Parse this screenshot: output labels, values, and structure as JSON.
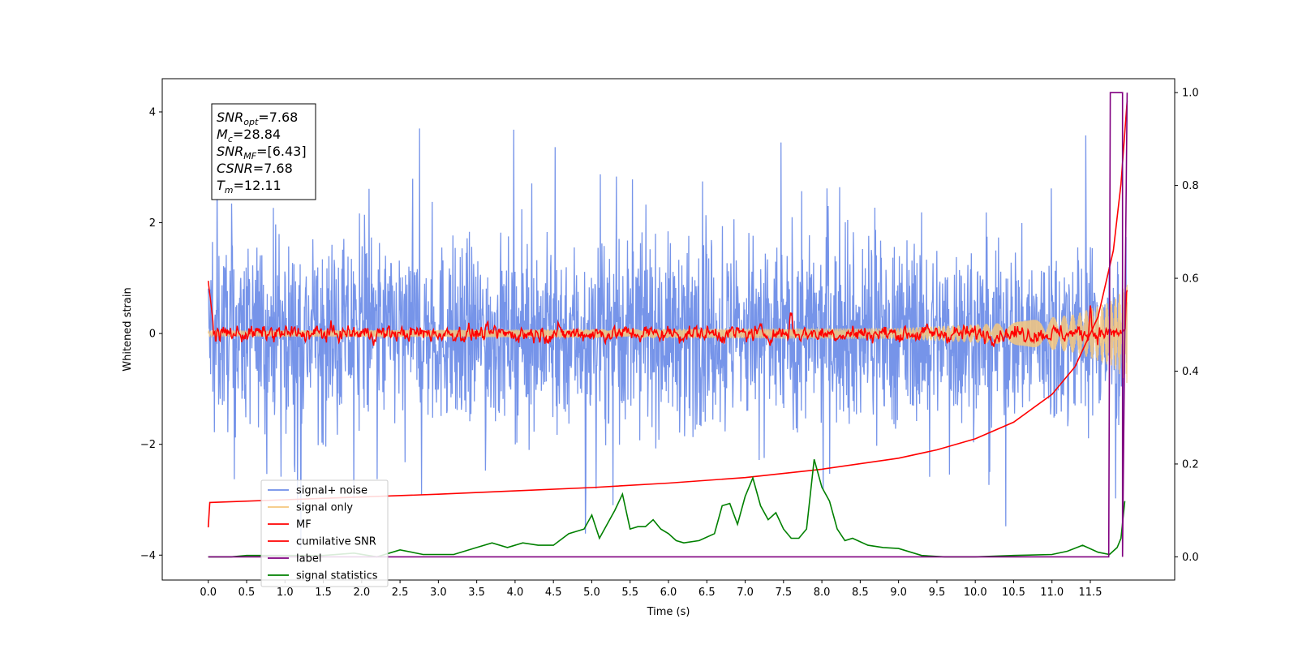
{
  "chart_data": {
    "type": "line",
    "title": "",
    "xlabel": "Time (s)",
    "ylabel": "Whitened strain",
    "xlim": [
      -0.6,
      12.6
    ],
    "ylim": [
      -4.45,
      4.6
    ],
    "y2lim": [
      -0.05,
      1.03
    ],
    "x_ticks": [
      0.0,
      0.5,
      1.0,
      1.5,
      2.0,
      2.5,
      3.0,
      3.5,
      4.0,
      4.5,
      5.0,
      5.5,
      6.0,
      6.5,
      7.0,
      7.5,
      8.0,
      8.5,
      9.0,
      9.5,
      10.0,
      10.5,
      11.0,
      11.5
    ],
    "x_tick_labels": [
      "0.0",
      "0.5",
      "1.0",
      "1.5",
      "2.0",
      "2.5",
      "3.0",
      "3.5",
      "4.0",
      "4.5",
      "5.0",
      "5.5",
      "6.0",
      "6.5",
      "7.0",
      "7.5",
      "8.0",
      "8.5",
      "9.0",
      "9.5",
      "10.0",
      "10.5",
      "11.0",
      "11.5"
    ],
    "y_ticks": [
      -4,
      -2,
      0,
      2,
      4
    ],
    "y_tick_labels": [
      "−4",
      "−2",
      "0",
      "2",
      "4"
    ],
    "y2_ticks": [
      0.0,
      0.2,
      0.4,
      0.6,
      0.8,
      1.0
    ],
    "y2_tick_labels": [
      "0.0",
      "0.2",
      "0.4",
      "0.6",
      "0.8",
      "1.0"
    ],
    "grid": false,
    "legend_position": "bottom-left",
    "annotation": {
      "lines": [
        {
          "base": "SNR",
          "sub": "opt",
          "value": "=7.68"
        },
        {
          "base": "M",
          "sub": "c",
          "value": "=28.84"
        },
        {
          "base": "SNR",
          "sub": "MF",
          "value": "=[6.43]"
        },
        {
          "base": "CSNR",
          "sub": "",
          "value": "=7.68"
        },
        {
          "base": "T",
          "sub": "m",
          "value": "=12.11"
        }
      ]
    },
    "series": [
      {
        "name": "signal+ noise",
        "color": "#6f8ee8",
        "axis": "left",
        "description_envelope": {
          "mean": 0.0,
          "typical_amplitude": 1.8,
          "peak_max": 4.1,
          "peak_min": -3.9
        },
        "x_range": [
          0.0,
          11.98
        ]
      },
      {
        "name": "signal only",
        "color": "#f5c77e",
        "axis": "left",
        "x_range": [
          0.0,
          11.98
        ],
        "envelope": [
          [
            0.0,
            0.05
          ],
          [
            9.0,
            0.1
          ],
          [
            10.5,
            0.2
          ],
          [
            11.3,
            0.35
          ],
          [
            11.8,
            0.6
          ],
          [
            11.98,
            0.9
          ]
        ]
      },
      {
        "name": "MF",
        "color": "#ff0000",
        "axis": "left",
        "x_range": [
          0.0,
          11.98
        ],
        "start_value": 0.95,
        "noise_amplitude": 0.15,
        "peaks": [
          [
            7.6,
            0.55
          ],
          [
            11.5,
            0.6
          ],
          [
            11.98,
            1.0
          ]
        ]
      },
      {
        "name": "cumilative SNR",
        "color": "#ff0000",
        "axis": "left",
        "x": [
          0.0,
          0.02,
          1.0,
          2.0,
          3.0,
          4.0,
          5.0,
          6.0,
          7.0,
          8.0,
          9.0,
          9.5,
          10.0,
          10.5,
          11.0,
          11.3,
          11.6,
          11.8,
          11.9,
          11.98
        ],
        "y": [
          -3.5,
          -3.05,
          -3.0,
          -2.95,
          -2.9,
          -2.84,
          -2.78,
          -2.7,
          -2.6,
          -2.45,
          -2.25,
          -2.1,
          -1.9,
          -1.6,
          -1.1,
          -0.6,
          0.3,
          1.5,
          2.7,
          4.2
        ]
      },
      {
        "name": "label",
        "color": "#800080",
        "axis": "right",
        "x": [
          0.0,
          11.74,
          11.76,
          11.92,
          11.92,
          11.98
        ],
        "y": [
          0.0,
          0.0,
          1.0,
          1.0,
          0.0,
          1.0
        ]
      },
      {
        "name": "signal statistics",
        "color": "#008000",
        "axis": "right",
        "x": [
          0.0,
          0.3,
          0.5,
          1.0,
          1.5,
          1.9,
          2.2,
          2.5,
          2.8,
          3.0,
          3.2,
          3.5,
          3.7,
          3.9,
          4.1,
          4.3,
          4.5,
          4.7,
          4.9,
          5.0,
          5.1,
          5.2,
          5.3,
          5.4,
          5.5,
          5.6,
          5.7,
          5.8,
          5.9,
          6.0,
          6.1,
          6.2,
          6.4,
          6.6,
          6.7,
          6.8,
          6.9,
          7.0,
          7.1,
          7.2,
          7.3,
          7.4,
          7.5,
          7.6,
          7.7,
          7.8,
          7.9,
          8.0,
          8.1,
          8.2,
          8.3,
          8.4,
          8.6,
          8.8,
          9.0,
          9.3,
          9.6,
          10.0,
          10.5,
          11.0,
          11.2,
          11.4,
          11.6,
          11.75,
          11.85,
          11.9,
          11.95
        ],
        "y": [
          0.0,
          0.0,
          0.003,
          0.003,
          0.003,
          0.008,
          0.0,
          0.015,
          0.005,
          0.005,
          0.005,
          0.02,
          0.03,
          0.02,
          0.03,
          0.025,
          0.025,
          0.05,
          0.06,
          0.09,
          0.04,
          0.07,
          0.1,
          0.135,
          0.06,
          0.065,
          0.065,
          0.08,
          0.06,
          0.05,
          0.035,
          0.03,
          0.035,
          0.05,
          0.11,
          0.115,
          0.07,
          0.13,
          0.17,
          0.11,
          0.08,
          0.095,
          0.06,
          0.04,
          0.04,
          0.06,
          0.21,
          0.15,
          0.12,
          0.06,
          0.035,
          0.04,
          0.025,
          0.02,
          0.018,
          0.003,
          0.0,
          0.0,
          0.003,
          0.005,
          0.012,
          0.025,
          0.01,
          0.005,
          0.02,
          0.04,
          0.12
        ]
      }
    ]
  }
}
